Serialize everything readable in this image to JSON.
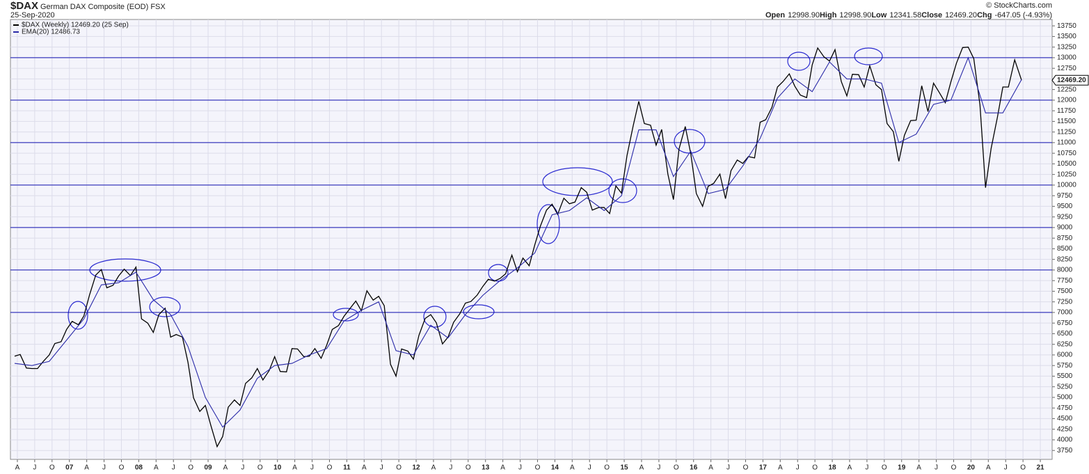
{
  "chart_data": {
    "type": "line",
    "symbol": "$DAX",
    "title": "German DAX Composite (EOD) FSX",
    "date": "25-Sep-2020",
    "quote": [
      {
        "label": "Open",
        "value": "12998.90"
      },
      {
        "label": "High",
        "value": "12998.90"
      },
      {
        "label": "Low",
        "value": "12341.58"
      },
      {
        "label": "Close",
        "value": "12469.20"
      },
      {
        "label": "Chg",
        "value": "-647.05 (-4.93%)"
      }
    ],
    "credit": "© StockCharts.com",
    "last_price_label": "12469.20",
    "grid": true,
    "legend": "top-left",
    "series": [
      {
        "name": "$DAX (Weekly) 12469.20 (25 Sep)",
        "color": "#000000",
        "x": [
          2006.21,
          2006.29,
          2006.38,
          2006.46,
          2006.54,
          2006.63,
          2006.71,
          2006.79,
          2006.88,
          2006.96,
          2007.04,
          2007.13,
          2007.21,
          2007.29,
          2007.38,
          2007.46,
          2007.54,
          2007.63,
          2007.71,
          2007.79,
          2007.88,
          2007.96,
          2008.04,
          2008.13,
          2008.21,
          2008.29,
          2008.38,
          2008.46,
          2008.54,
          2008.63,
          2008.71,
          2008.79,
          2008.88,
          2008.96,
          2009.04,
          2009.13,
          2009.21,
          2009.29,
          2009.38,
          2009.46,
          2009.54,
          2009.63,
          2009.71,
          2009.79,
          2009.88,
          2009.96,
          2010.04,
          2010.13,
          2010.21,
          2010.29,
          2010.38,
          2010.46,
          2010.54,
          2010.63,
          2010.71,
          2010.79,
          2010.88,
          2010.96,
          2011.04,
          2011.13,
          2011.21,
          2011.29,
          2011.38,
          2011.46,
          2011.54,
          2011.63,
          2011.71,
          2011.79,
          2011.88,
          2011.96,
          2012.04,
          2012.13,
          2012.21,
          2012.29,
          2012.38,
          2012.46,
          2012.54,
          2012.63,
          2012.71,
          2012.79,
          2012.88,
          2012.96,
          2013.04,
          2013.13,
          2013.21,
          2013.29,
          2013.38,
          2013.46,
          2013.54,
          2013.63,
          2013.71,
          2013.79,
          2013.88,
          2013.96,
          2014.04,
          2014.13,
          2014.21,
          2014.29,
          2014.38,
          2014.46,
          2014.54,
          2014.63,
          2014.71,
          2014.79,
          2014.88,
          2014.96,
          2015.04,
          2015.13,
          2015.21,
          2015.29,
          2015.38,
          2015.46,
          2015.54,
          2015.63,
          2015.71,
          2015.79,
          2015.88,
          2015.96,
          2016.04,
          2016.13,
          2016.21,
          2016.29,
          2016.38,
          2016.46,
          2016.54,
          2016.63,
          2016.71,
          2016.79,
          2016.88,
          2016.96,
          2017.04,
          2017.13,
          2017.21,
          2017.29,
          2017.38,
          2017.46,
          2017.54,
          2017.63,
          2017.71,
          2017.79,
          2017.88,
          2017.96,
          2018.04,
          2018.13,
          2018.21,
          2018.29,
          2018.38,
          2018.46,
          2018.54,
          2018.63,
          2018.71,
          2018.79,
          2018.88,
          2018.96,
          2019.04,
          2019.13,
          2019.21,
          2019.29,
          2019.38,
          2019.46,
          2019.54,
          2019.63,
          2019.71,
          2019.79,
          2019.88,
          2019.96,
          2020.04,
          2020.13,
          2020.21,
          2020.29,
          2020.38,
          2020.46,
          2020.54,
          2020.63,
          2020.73
        ],
        "values": [
          5970,
          6010,
          5690,
          5680,
          5680,
          5860,
          6000,
          6270,
          6310,
          6600,
          6790,
          6710,
          6920,
          7410,
          7880,
          8010,
          7580,
          7640,
          7860,
          8020,
          7870,
          8070,
          6850,
          6750,
          6530,
          6950,
          7100,
          6420,
          6480,
          6420,
          5830,
          4990,
          4670,
          4810,
          4340,
          3840,
          4080,
          4770,
          4940,
          4810,
          5330,
          5460,
          5680,
          5410,
          5630,
          5960,
          5610,
          5600,
          6150,
          6140,
          5960,
          5970,
          6150,
          5920,
          6230,
          6600,
          6690,
          6910,
          7080,
          7270,
          7040,
          7510,
          7290,
          7380,
          7160,
          5780,
          5500,
          6140,
          6090,
          5900,
          6460,
          6860,
          6950,
          6760,
          6260,
          6420,
          6770,
          6970,
          7220,
          7260,
          7410,
          7610,
          7780,
          7740,
          7800,
          7910,
          8350,
          7960,
          8280,
          8100,
          8590,
          9030,
          9410,
          9550,
          9310,
          9690,
          9560,
          9600,
          9940,
          9830,
          9410,
          9470,
          9470,
          9330,
          9980,
          9810,
          10690,
          11400,
          11970,
          11450,
          11410,
          10940,
          11310,
          10260,
          9660,
          10850,
          11380,
          10740,
          9800,
          9500,
          9970,
          10040,
          10260,
          9680,
          10340,
          10590,
          10510,
          10670,
          10640,
          11480,
          11540,
          11830,
          12310,
          12440,
          12620,
          12330,
          12120,
          12060,
          12830,
          13230,
          13020,
          12920,
          13190,
          12440,
          12100,
          12610,
          12600,
          12310,
          12810,
          12360,
          12250,
          11450,
          11260,
          10560,
          11170,
          11520,
          11530,
          12340,
          11730,
          12400,
          12190,
          11940,
          12430,
          12870,
          13240,
          13250,
          12980,
          11890,
          9940,
          10860,
          11590,
          12310,
          12310,
          12950,
          12469.2
        ]
      },
      {
        "name": "EMA(20) 12486.73",
        "color": "#2a2aa8",
        "x": [
          2006.21,
          2006.46,
          2006.71,
          2006.96,
          2007.21,
          2007.46,
          2007.71,
          2007.96,
          2008.21,
          2008.46,
          2008.71,
          2008.96,
          2009.21,
          2009.46,
          2009.71,
          2009.96,
          2010.21,
          2010.46,
          2010.71,
          2010.96,
          2011.21,
          2011.46,
          2011.71,
          2011.96,
          2012.21,
          2012.46,
          2012.71,
          2012.96,
          2013.21,
          2013.46,
          2013.71,
          2013.96,
          2014.21,
          2014.46,
          2014.71,
          2014.96,
          2015.21,
          2015.46,
          2015.71,
          2015.96,
          2016.21,
          2016.46,
          2016.71,
          2016.96,
          2017.21,
          2017.46,
          2017.71,
          2017.96,
          2018.21,
          2018.46,
          2018.71,
          2018.96,
          2019.21,
          2019.46,
          2019.71,
          2019.96,
          2020.21,
          2020.46,
          2020.73
        ],
        "values": [
          5800,
          5750,
          5850,
          6350,
          6850,
          7650,
          7700,
          7950,
          7300,
          6950,
          6200,
          5000,
          4300,
          4700,
          5450,
          5750,
          5800,
          6000,
          6150,
          6800,
          7050,
          7250,
          6100,
          6000,
          6700,
          6400,
          6950,
          7400,
          7750,
          8050,
          8400,
          9300,
          9400,
          9700,
          9400,
          9750,
          11300,
          11300,
          10200,
          10800,
          9800,
          9900,
          10450,
          11100,
          12050,
          12500,
          12200,
          12900,
          12500,
          12500,
          12400,
          11000,
          11200,
          11900,
          12000,
          13000,
          11700,
          11700,
          12486.73
        ]
      }
    ],
    "hlines": [
      7000,
      8000,
      9000,
      10000,
      11000,
      12000,
      13000
    ],
    "hline_color": "#1010b0",
    "xlim": [
      2006.15,
      2021.17
    ],
    "xticks": [
      {
        "value": 2006.25,
        "label": "A"
      },
      {
        "value": 2006.5,
        "label": "J"
      },
      {
        "value": 2006.75,
        "label": "O"
      },
      {
        "value": 2007,
        "label": "07"
      },
      {
        "value": 2007.25,
        "label": "A"
      },
      {
        "value": 2007.5,
        "label": "J"
      },
      {
        "value": 2007.75,
        "label": "O"
      },
      {
        "value": 2008,
        "label": "08"
      },
      {
        "value": 2008.25,
        "label": "A"
      },
      {
        "value": 2008.5,
        "label": "J"
      },
      {
        "value": 2008.75,
        "label": "O"
      },
      {
        "value": 2009,
        "label": "09"
      },
      {
        "value": 2009.25,
        "label": "A"
      },
      {
        "value": 2009.5,
        "label": "J"
      },
      {
        "value": 2009.75,
        "label": "O"
      },
      {
        "value": 2010,
        "label": "10"
      },
      {
        "value": 2010.25,
        "label": "A"
      },
      {
        "value": 2010.5,
        "label": "J"
      },
      {
        "value": 2010.75,
        "label": "O"
      },
      {
        "value": 2011,
        "label": "11"
      },
      {
        "value": 2011.25,
        "label": "A"
      },
      {
        "value": 2011.5,
        "label": "J"
      },
      {
        "value": 2011.75,
        "label": "O"
      },
      {
        "value": 2012,
        "label": "12"
      },
      {
        "value": 2012.25,
        "label": "A"
      },
      {
        "value": 2012.5,
        "label": "J"
      },
      {
        "value": 2012.75,
        "label": "O"
      },
      {
        "value": 2013,
        "label": "13"
      },
      {
        "value": 2013.25,
        "label": "A"
      },
      {
        "value": 2013.5,
        "label": "J"
      },
      {
        "value": 2013.75,
        "label": "O"
      },
      {
        "value": 2014,
        "label": "14"
      },
      {
        "value": 2014.25,
        "label": "A"
      },
      {
        "value": 2014.5,
        "label": "J"
      },
      {
        "value": 2014.75,
        "label": "O"
      },
      {
        "value": 2015,
        "label": "15"
      },
      {
        "value": 2015.25,
        "label": "A"
      },
      {
        "value": 2015.5,
        "label": "J"
      },
      {
        "value": 2015.75,
        "label": "O"
      },
      {
        "value": 2016,
        "label": "16"
      },
      {
        "value": 2016.25,
        "label": "A"
      },
      {
        "value": 2016.5,
        "label": "J"
      },
      {
        "value": 2016.75,
        "label": "O"
      },
      {
        "value": 2017,
        "label": "17"
      },
      {
        "value": 2017.25,
        "label": "A"
      },
      {
        "value": 2017.5,
        "label": "J"
      },
      {
        "value": 2017.75,
        "label": "O"
      },
      {
        "value": 2018,
        "label": "18"
      },
      {
        "value": 2018.25,
        "label": "A"
      },
      {
        "value": 2018.5,
        "label": "J"
      },
      {
        "value": 2018.75,
        "label": "O"
      },
      {
        "value": 2019,
        "label": "19"
      },
      {
        "value": 2019.25,
        "label": "A"
      },
      {
        "value": 2019.5,
        "label": "J"
      },
      {
        "value": 2019.75,
        "label": "O"
      },
      {
        "value": 2020,
        "label": "20"
      },
      {
        "value": 2020.25,
        "label": "A"
      },
      {
        "value": 2020.5,
        "label": "J"
      },
      {
        "value": 2020.75,
        "label": "O"
      },
      {
        "value": 2021,
        "label": "21"
      }
    ],
    "ylim": [
      3540,
      13900
    ],
    "yticks": [
      3750,
      4000,
      4250,
      4500,
      4750,
      5000,
      5250,
      5500,
      5750,
      6000,
      6250,
      6500,
      6750,
      7000,
      7250,
      7500,
      7750,
      8000,
      8250,
      8500,
      8750,
      9000,
      9250,
      9500,
      9750,
      10000,
      10250,
      10500,
      10750,
      11000,
      11250,
      11500,
      11750,
      12000,
      12250,
      12500,
      12750,
      13000,
      13250,
      13500,
      13750
    ]
  }
}
